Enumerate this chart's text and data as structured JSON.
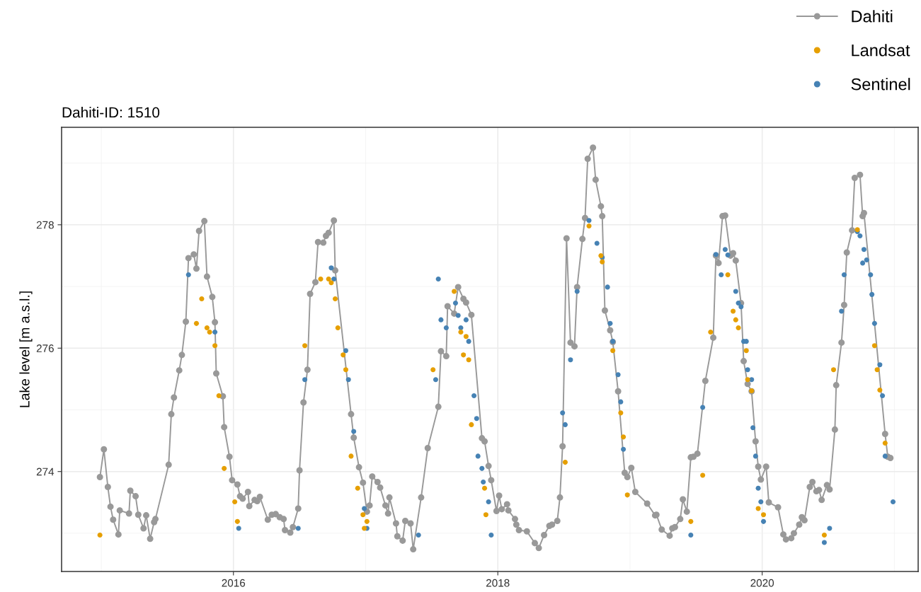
{
  "chart_data": {
    "type": "line",
    "title": "Dahiti-ID: 1510",
    "ylabel": "Lake level [m a.s.l.]",
    "xlim": [
      2014.7,
      2021.18
    ],
    "ylim": [
      272.38,
      279.58
    ],
    "xticks": [
      {
        "value": 2015,
        "label": null
      },
      2016,
      {
        "value": 2017,
        "label": null
      },
      2018,
      {
        "value": 2019,
        "label": null
      },
      2020,
      {
        "value": 2021,
        "label": null
      }
    ],
    "yticks": [
      {
        "value": 273,
        "label": null
      },
      274,
      {
        "value": 275,
        "label": null
      },
      276,
      {
        "value": 277,
        "label": null
      },
      278,
      {
        "value": 279,
        "label": null
      }
    ],
    "grid": true,
    "legend": "top right",
    "series": [
      {
        "name": "Dahiti",
        "color": "#999999",
        "marker": "circle",
        "line_style": "solid",
        "x": [
          2014.99,
          2015.02,
          2015.05,
          2015.07,
          2015.09,
          2015.13,
          2015.14,
          2015.21,
          2015.22,
          2015.26,
          2015.28,
          2015.32,
          2015.34,
          2015.37,
          2015.4,
          2015.41,
          2015.51,
          2015.53,
          2015.55,
          2015.59,
          2015.61,
          2015.64,
          2015.66,
          2015.7,
          2015.72,
          2015.74,
          2015.78,
          2015.8,
          2015.84,
          2015.86,
          2015.87,
          2015.92,
          2015.93,
          2015.97,
          2015.99,
          2016.03,
          2016.05,
          2016.07,
          2016.11,
          2016.12,
          2016.16,
          2016.18,
          2016.2,
          2016.26,
          2016.29,
          2016.32,
          2016.35,
          2016.38,
          2016.39,
          2016.43,
          2016.45,
          2016.49,
          2016.5,
          2016.53,
          2016.56,
          2016.58,
          2016.62,
          2016.64,
          2016.68,
          2016.7,
          2016.72,
          2016.76,
          2016.77,
          2016.89,
          2016.91,
          2016.95,
          2016.98,
          2017.01,
          2017.03,
          2017.05,
          2017.09,
          2017.11,
          2017.15,
          2017.17,
          2017.18,
          2017.23,
          2017.24,
          2017.28,
          2017.3,
          2017.34,
          2017.36,
          2017.42,
          2017.47,
          2017.55,
          2017.57,
          2017.61,
          2017.62,
          2017.67,
          2017.7,
          2017.74,
          2017.76,
          2017.8,
          2017.88,
          2017.9,
          2017.93,
          2017.95,
          2017.99,
          2018.01,
          2018.03,
          2018.07,
          2018.08,
          2018.13,
          2018.14,
          2018.16,
          2018.22,
          2018.28,
          2018.31,
          2018.35,
          2018.39,
          2018.41,
          2018.45,
          2018.47,
          2018.49,
          2018.52,
          2018.55,
          2018.58,
          2018.6,
          2018.64,
          2018.66,
          2018.68,
          2018.72,
          2018.74,
          2018.78,
          2018.79,
          2018.81,
          2018.85,
          2018.87,
          2018.91,
          2018.96,
          2018.98,
          2019.01,
          2019.04,
          2019.13,
          2019.19,
          2019.2,
          2019.24,
          2019.3,
          2019.32,
          2019.34,
          2019.38,
          2019.4,
          2019.43,
          2019.46,
          2019.48,
          2019.51,
          2019.57,
          2019.63,
          2019.65,
          2019.67,
          2019.7,
          2019.72,
          2019.76,
          2019.78,
          2019.8,
          2019.84,
          2019.86,
          2019.89,
          2019.92,
          2019.95,
          2019.97,
          2019.99,
          2020.03,
          2020.05,
          2020.12,
          2020.16,
          2020.18,
          2020.22,
          2020.24,
          2020.28,
          2020.3,
          2020.32,
          2020.36,
          2020.38,
          2020.41,
          2020.43,
          2020.45,
          2020.49,
          2020.51,
          2020.55,
          2020.56,
          2020.6,
          2020.62,
          2020.64,
          2020.68,
          2020.7,
          2020.74,
          2020.76,
          2020.77,
          2020.93,
          2020.95,
          2020.97
        ],
        "values": [
          273.91,
          274.36,
          273.75,
          273.43,
          273.22,
          272.98,
          273.37,
          273.32,
          273.69,
          273.6,
          273.3,
          273.08,
          273.29,
          272.91,
          273.18,
          273.23,
          274.11,
          274.93,
          275.2,
          275.64,
          275.89,
          276.43,
          277.46,
          277.52,
          277.29,
          277.9,
          278.06,
          277.16,
          276.83,
          276.42,
          275.59,
          275.22,
          274.72,
          274.24,
          273.86,
          273.79,
          273.6,
          273.56,
          273.67,
          273.44,
          273.54,
          273.52,
          273.59,
          273.22,
          273.3,
          273.31,
          273.26,
          273.23,
          273.05,
          273.01,
          273.1,
          273.4,
          274.02,
          275.12,
          275.65,
          276.88,
          277.07,
          277.72,
          277.71,
          277.82,
          277.87,
          278.07,
          277.26,
          274.93,
          274.55,
          274.07,
          273.82,
          273.35,
          273.45,
          273.92,
          273.83,
          273.74,
          273.45,
          273.32,
          273.58,
          273.16,
          272.95,
          272.88,
          273.2,
          273.16,
          272.74,
          273.58,
          274.38,
          275.05,
          275.95,
          275.87,
          276.68,
          276.56,
          276.99,
          276.8,
          276.74,
          276.54,
          274.54,
          274.49,
          274.09,
          273.86,
          273.36,
          273.61,
          273.39,
          273.47,
          273.37,
          273.23,
          273.14,
          273.05,
          273.03,
          272.84,
          272.76,
          272.97,
          273.12,
          273.14,
          273.2,
          273.58,
          274.41,
          277.78,
          276.09,
          276.03,
          276.99,
          277.77,
          278.11,
          279.07,
          279.25,
          278.73,
          278.3,
          278.14,
          276.61,
          276.29,
          276.1,
          275.3,
          273.98,
          273.91,
          274.06,
          273.67,
          273.48,
          273.29,
          273.3,
          273.06,
          272.96,
          273.08,
          273.1,
          273.23,
          273.55,
          273.35,
          274.23,
          274.24,
          274.29,
          275.47,
          276.17,
          277.5,
          277.38,
          278.14,
          278.15,
          277.5,
          277.54,
          277.42,
          276.73,
          275.79,
          275.42,
          275.3,
          274.49,
          274.08,
          273.87,
          274.08,
          273.5,
          273.42,
          272.98,
          272.9,
          272.92,
          273.0,
          273.14,
          273.26,
          273.21,
          273.75,
          273.83,
          273.68,
          273.7,
          273.54,
          273.78,
          273.71,
          274.68,
          275.4,
          276.09,
          276.7,
          277.55,
          277.91,
          278.76,
          278.81,
          278.14,
          278.19,
          274.61,
          274.24,
          274.22
        ]
      },
      {
        "name": "Landsat",
        "type": "scatter",
        "color": "#e69f00",
        "marker": "circle",
        "x": [
          2014.99,
          2015.72,
          2015.76,
          2015.8,
          2015.82,
          2015.86,
          2015.89,
          2015.93,
          2016.01,
          2016.03,
          2016.54,
          2016.66,
          2016.72,
          2016.74,
          2016.77,
          2016.79,
          2016.83,
          2016.85,
          2016.89,
          2016.94,
          2016.98,
          2016.99,
          2017.01,
          2017.51,
          2017.67,
          2017.72,
          2017.74,
          2017.76,
          2017.78,
          2017.8,
          2017.9,
          2017.91,
          2018.51,
          2018.69,
          2018.78,
          2018.79,
          2018.87,
          2018.93,
          2018.95,
          2018.98,
          2019.46,
          2019.55,
          2019.61,
          2019.74,
          2019.78,
          2019.8,
          2019.82,
          2019.88,
          2019.89,
          2019.92,
          2019.97,
          2020.01,
          2020.47,
          2020.54,
          2020.72,
          2020.85,
          2020.87,
          2020.89,
          2020.93
        ],
        "values": [
          272.97,
          276.4,
          276.8,
          276.33,
          276.26,
          276.04,
          275.23,
          274.05,
          273.51,
          273.19,
          276.04,
          277.12,
          277.12,
          277.06,
          276.8,
          276.33,
          275.89,
          275.65,
          274.25,
          273.73,
          273.3,
          273.08,
          273.19,
          275.65,
          276.92,
          276.26,
          275.89,
          276.19,
          275.81,
          274.76,
          273.73,
          273.3,
          274.15,
          277.98,
          277.5,
          277.4,
          275.96,
          274.95,
          274.56,
          273.62,
          273.19,
          273.94,
          276.26,
          277.19,
          276.6,
          276.46,
          276.33,
          275.96,
          275.49,
          275.31,
          273.4,
          273.3,
          272.97,
          275.65,
          277.92,
          276.04,
          275.65,
          275.32,
          274.46
        ]
      },
      {
        "name": "Sentinel",
        "type": "scatter",
        "color": "#4682b4",
        "marker": "circle",
        "x": [
          2015.66,
          2015.86,
          2016.04,
          2016.49,
          2016.54,
          2016.74,
          2016.76,
          2016.85,
          2016.87,
          2016.91,
          2016.99,
          2017.01,
          2017.4,
          2017.53,
          2017.55,
          2017.57,
          2017.61,
          2017.68,
          2017.7,
          2017.72,
          2017.76,
          2017.78,
          2017.82,
          2017.84,
          2017.85,
          2017.88,
          2017.89,
          2017.93,
          2017.95,
          2018.49,
          2018.51,
          2018.55,
          2018.6,
          2018.69,
          2018.75,
          2018.79,
          2018.83,
          2018.85,
          2018.87,
          2018.91,
          2018.93,
          2018.95,
          2019.46,
          2019.55,
          2019.65,
          2019.69,
          2019.72,
          2019.74,
          2019.8,
          2019.82,
          2019.84,
          2019.86,
          2019.88,
          2019.89,
          2019.92,
          2019.93,
          2019.95,
          2019.97,
          2019.99,
          2020.01,
          2020.47,
          2020.51,
          2020.6,
          2020.62,
          2020.72,
          2020.74,
          2020.76,
          2020.77,
          2020.79,
          2020.82,
          2020.83,
          2020.85,
          2020.89,
          2020.91,
          2020.93,
          2020.99
        ],
        "values": [
          277.19,
          276.26,
          273.08,
          273.08,
          275.49,
          277.3,
          277.12,
          275.96,
          275.49,
          274.65,
          273.4,
          273.08,
          272.97,
          275.49,
          277.12,
          276.46,
          276.33,
          276.73,
          276.53,
          276.33,
          276.46,
          276.11,
          275.23,
          274.86,
          274.25,
          274.05,
          273.83,
          273.51,
          272.97,
          274.95,
          274.76,
          275.81,
          276.92,
          278.07,
          277.7,
          277.47,
          276.99,
          276.4,
          276.11,
          275.57,
          275.13,
          274.36,
          272.97,
          275.04,
          277.52,
          277.19,
          277.6,
          277.51,
          276.92,
          276.73,
          276.67,
          276.11,
          276.11,
          275.65,
          275.49,
          274.71,
          274.25,
          273.73,
          273.51,
          273.19,
          272.85,
          273.08,
          276.6,
          277.19,
          277.89,
          277.82,
          277.38,
          277.6,
          277.43,
          277.19,
          276.87,
          276.4,
          275.73,
          275.23,
          274.25,
          273.51
        ]
      }
    ]
  }
}
